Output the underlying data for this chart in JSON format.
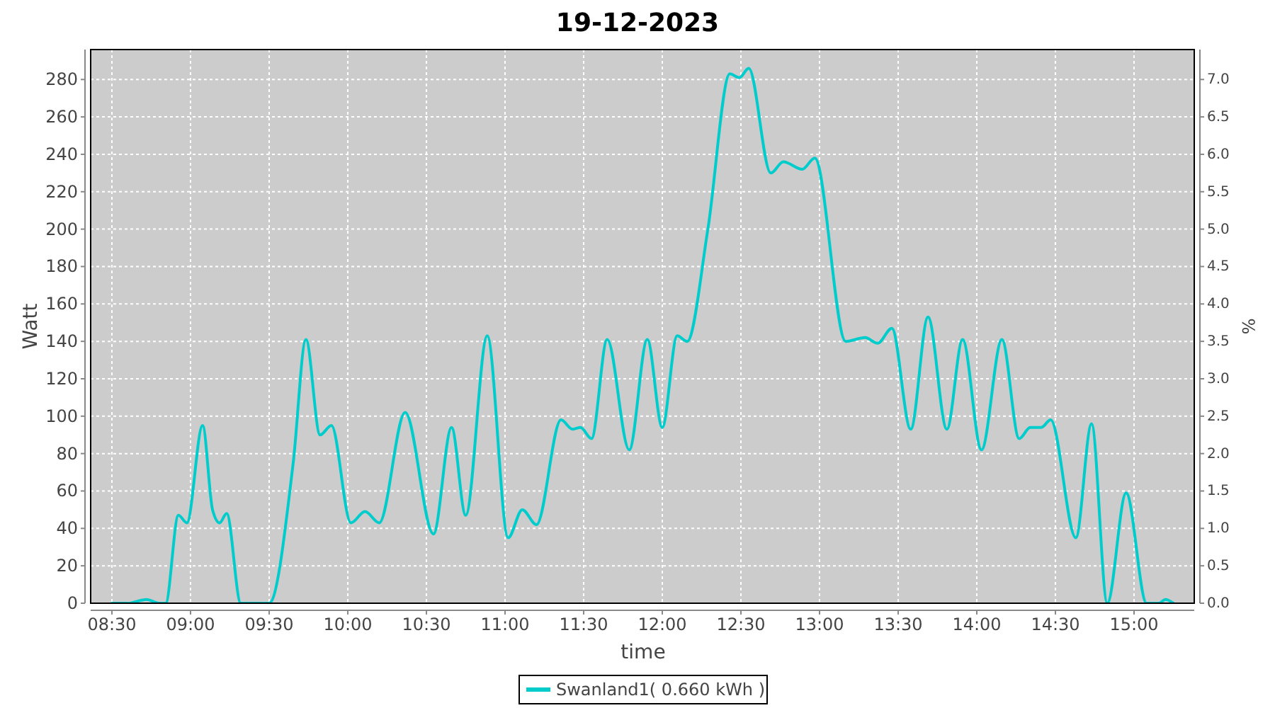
{
  "chart_data": {
    "type": "line",
    "title": "19-12-2023",
    "xlabel": "time",
    "ylabel": "Watt",
    "y2label": "%",
    "xlim": [
      8.365,
      15.383
    ],
    "ylim": [
      0,
      296
    ],
    "y2lim": [
      0,
      7.4
    ],
    "xticks": [
      {
        "value": 8.5,
        "label": "08:30"
      },
      {
        "value": 9,
        "label": "09:00"
      },
      {
        "value": 9.5,
        "label": "09:30"
      },
      {
        "value": 10,
        "label": "10:00"
      },
      {
        "value": 10.5,
        "label": "10:30"
      },
      {
        "value": 11,
        "label": "11:00"
      },
      {
        "value": 11.5,
        "label": "11:30"
      },
      {
        "value": 12,
        "label": "12:00"
      },
      {
        "value": 12.5,
        "label": "12:30"
      },
      {
        "value": 13,
        "label": "13:00"
      },
      {
        "value": 13.5,
        "label": "13:30"
      },
      {
        "value": 14,
        "label": "14:00"
      },
      {
        "value": 14.5,
        "label": "14:30"
      },
      {
        "value": 15,
        "label": "15:00"
      }
    ],
    "yticks": [
      0,
      20,
      40,
      60,
      80,
      100,
      120,
      140,
      160,
      180,
      200,
      220,
      240,
      260,
      280
    ],
    "y2ticks": [
      {
        "value": 0,
        "label": "0.0"
      },
      {
        "value": 0.5,
        "label": "0.5"
      },
      {
        "value": 1,
        "label": "1.0"
      },
      {
        "value": 1.5,
        "label": "1.5"
      },
      {
        "value": 2,
        "label": "2.0"
      },
      {
        "value": 2.5,
        "label": "2.5"
      },
      {
        "value": 3,
        "label": "3.0"
      },
      {
        "value": 3.5,
        "label": "3.5"
      },
      {
        "value": 4,
        "label": "4.0"
      },
      {
        "value": 4.5,
        "label": "4.5"
      },
      {
        "value": 5,
        "label": "5.0"
      },
      {
        "value": 5.5,
        "label": "5.5"
      },
      {
        "value": 6,
        "label": "6.0"
      },
      {
        "value": 6.5,
        "label": "6.5"
      },
      {
        "value": 7,
        "label": "7.0"
      }
    ],
    "grid": true,
    "legend": "bottom",
    "line_style": "solid",
    "x": [
      8.5,
      8.6,
      8.72,
      8.8,
      8.842,
      8.923,
      8.977,
      9.077,
      9.14,
      9.185,
      9.23,
      9.32,
      9.5,
      9.653,
      9.734,
      9.824,
      9.896,
      10.02,
      10.11,
      10.2,
      10.365,
      10.545,
      10.66,
      10.75,
      10.887,
      11.02,
      11.11,
      11.2,
      11.356,
      11.43,
      11.48,
      11.55,
      11.65,
      11.79,
      11.905,
      12.0,
      12.095,
      12.158,
      12.29,
      12.43,
      12.49,
      12.55,
      12.69,
      12.77,
      12.89,
      12.97,
      13.167,
      13.29,
      13.37,
      13.46,
      13.58,
      13.69,
      13.81,
      13.91,
      14.03,
      14.16,
      14.27,
      14.34,
      14.41,
      14.47,
      14.63,
      14.73,
      14.83,
      14.95,
      15.08,
      15.16,
      15.2,
      15.25
    ],
    "series": [
      {
        "name": "Swanland1( 0.660 kWh )",
        "color": "#00cccc",
        "values": [
          0,
          0,
          2,
          0,
          0,
          47,
          43,
          95,
          50,
          43,
          48,
          0,
          0,
          75,
          141,
          90,
          95,
          43,
          49,
          43,
          102,
          37,
          94,
          47,
          143,
          35,
          50,
          42,
          98,
          93,
          94,
          88,
          141,
          82,
          141,
          94,
          143,
          140,
          200,
          283,
          281,
          286,
          230,
          236,
          232,
          238,
          140,
          142,
          139,
          147,
          93,
          153,
          93,
          141,
          82,
          141,
          88,
          94,
          94,
          98,
          35,
          96,
          0,
          59,
          0,
          0,
          2,
          0
        ]
      }
    ]
  }
}
